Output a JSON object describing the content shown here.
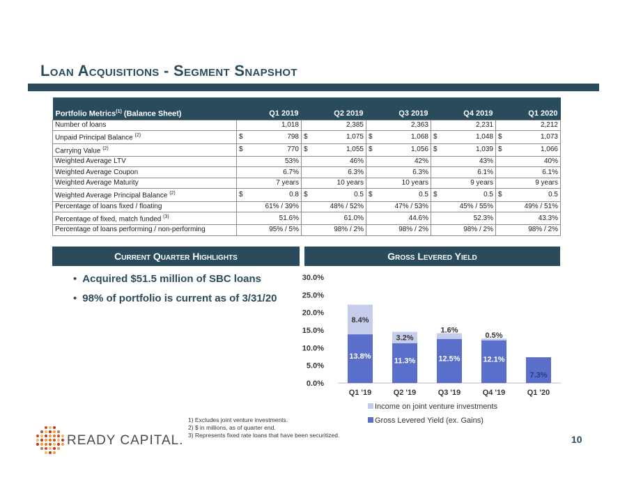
{
  "title_prefix": "Loan Acquisitions - ",
  "title_suffix": "Segment Snapshot",
  "table": {
    "header": {
      "label": "Portfolio Metrics",
      "sup": "(1)",
      "suffix": " (Balance Sheet)",
      "quarters": [
        "Q1 2019",
        "Q2 2019",
        "Q3 2019",
        "Q4 2019",
        "Q1 2020"
      ]
    },
    "rows": [
      {
        "label": "Number of loans",
        "sup": "",
        "cur": "",
        "values": [
          "1,018",
          "2,385",
          "2,363",
          "2,231",
          "2,212"
        ]
      },
      {
        "label": "Unpaid Principal Balance",
        "sup": "(2)",
        "cur": "$",
        "values": [
          "798",
          "1,075",
          "1,068",
          "1,048",
          "1,073"
        ]
      },
      {
        "label": "Carrying Value",
        "sup": "(2)",
        "cur": "$",
        "values": [
          "770",
          "1,055",
          "1,056",
          "1,039",
          "1,066"
        ]
      },
      {
        "label": "Weighted Average LTV",
        "sup": "",
        "cur": "",
        "values": [
          "53%",
          "46%",
          "42%",
          "43%",
          "40%"
        ]
      },
      {
        "label": "Weighted Average Coupon",
        "sup": "",
        "cur": "",
        "values": [
          "6.7%",
          "6.3%",
          "6.3%",
          "6.1%",
          "6.1%"
        ]
      },
      {
        "label": "Weighted Average Maturity",
        "sup": "",
        "cur": "",
        "values": [
          "7 years",
          "10 years",
          "10 years",
          "9 years",
          "9 years"
        ]
      },
      {
        "label": "Weighted Average Principal Balance",
        "sup": "(2)",
        "cur": "$",
        "values": [
          "0.8",
          "0.5",
          "0.5",
          "0.5",
          "0.5"
        ]
      },
      {
        "label": "Percentage of loans fixed / floating",
        "sup": "",
        "cur": "",
        "values": [
          "61% / 39%",
          "48% / 52%",
          "47% / 53%",
          "45% / 55%",
          "49% / 51%"
        ]
      },
      {
        "label": "Percentage of fixed, match funded",
        "sup": "(3)",
        "cur": "",
        "values": [
          "51.6%",
          "61.0%",
          "44.6%",
          "52.3%",
          "43.3%"
        ]
      },
      {
        "label": "Percentage of loans performing / non-performing",
        "sup": "",
        "cur": "",
        "values": [
          "95% / 5%",
          "98% / 2%",
          "98% / 2%",
          "98% / 2%",
          "98% / 2%"
        ]
      }
    ]
  },
  "highlights": {
    "heading": "Current Quarter Highlights",
    "bullets": [
      "Acquired $51.5 million of SBC loans",
      "98% of portfolio is current as of 3/31/20"
    ]
  },
  "chart_heading": "Gross Levered Yield",
  "chart_data": {
    "type": "bar",
    "stacked": true,
    "categories": [
      "Q1 '19",
      "Q2 '19",
      "Q3 '19",
      "Q4 '19",
      "Q1 '20"
    ],
    "series": [
      {
        "name": "Gross Levered Yield (ex. Gains)",
        "values": [
          13.8,
          11.3,
          12.5,
          12.1,
          7.3
        ],
        "labels": [
          "13.8%",
          "11.3%",
          "12.5%",
          "12.1%",
          "7.3%"
        ],
        "color": "#5a6fc9"
      },
      {
        "name": "Income on joint venture investments",
        "values": [
          8.4,
          3.2,
          1.6,
          0.5,
          0
        ],
        "labels": [
          "8.4%",
          "3.2%",
          "1.6%",
          "0.5%",
          ""
        ],
        "color": "#c6cdea"
      }
    ],
    "ylim": [
      0,
      30
    ],
    "yticks": [
      "0.0%",
      "5.0%",
      "10.0%",
      "15.0%",
      "20.0%",
      "25.0%",
      "30.0%"
    ],
    "legend_position": "bottom",
    "grid": false
  },
  "footnotes": [
    "1)   Excludes joint venture investments.",
    "2)   $ in millions, as of quarter end.",
    "3)   Represents fixed rate loans that have been securitized."
  ],
  "logo_text": "READY CAPITAL.",
  "page_number": "10"
}
